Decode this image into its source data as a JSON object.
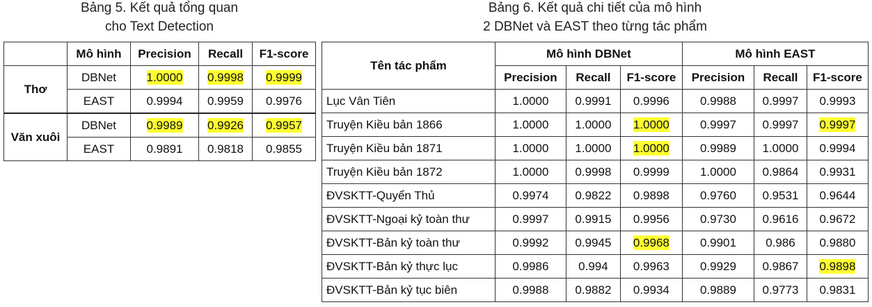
{
  "table5": {
    "caption_line1": "Bảng 5. Kết quả tổng quan",
    "caption_line2": "cho Text Detection",
    "headers": [
      "",
      "Mô hình",
      "Precision",
      "Recall",
      "F1-score"
    ],
    "groups": [
      {
        "label": "Thơ",
        "rows": [
          {
            "model": "DBNet",
            "precision": "1.0000",
            "recall": "0.9998",
            "f1": "0.9999",
            "highlight": [
              "precision",
              "recall",
              "f1"
            ]
          },
          {
            "model": "EAST",
            "precision": "0.9994",
            "recall": "0.9959",
            "f1": "0.9976",
            "highlight": []
          }
        ]
      },
      {
        "label": "Văn xuôi",
        "rows": [
          {
            "model": "DBNet",
            "precision": "0.9989",
            "recall": "0.9926",
            "f1": "0.9957",
            "highlight": [
              "precision",
              "recall",
              "f1"
            ]
          },
          {
            "model": "EAST",
            "precision": "0.9891",
            "recall": "0.9818",
            "f1": "0.9855",
            "highlight": []
          }
        ]
      }
    ]
  },
  "table6": {
    "caption_line1": "Bảng 6. Kết quả chi tiết của mô hình",
    "caption_line2": "2 DBNet và EAST theo từng tác phẩm",
    "header_work": "Tên tác phẩm",
    "header_group_dbnet": "Mô hình DBNet",
    "header_group_east": "Mô hình EAST",
    "sub_headers": [
      "Precision",
      "Recall",
      "F1-score",
      "Precision",
      "Recall",
      "F1-score"
    ],
    "rows": [
      {
        "work": "Lục Vân Tiên",
        "values": [
          "1.0000",
          "0.9991",
          "0.9996",
          "0.9988",
          "0.9997",
          "0.9993"
        ],
        "highlight": []
      },
      {
        "work": "Truyện Kiều bản 1866",
        "values": [
          "1.0000",
          "1.0000",
          "1.0000",
          "0.9997",
          "0.9997",
          "0.9997"
        ],
        "highlight": [
          2,
          5
        ]
      },
      {
        "work": "Truyện Kiều bản 1871",
        "values": [
          "1.0000",
          "1.0000",
          "1.0000",
          "0.9989",
          "1.0000",
          "0.9994"
        ],
        "highlight": [
          2
        ]
      },
      {
        "work": "Truyện Kiều bản 1872",
        "values": [
          "1.0000",
          "0.9998",
          "0.9999",
          "1.0000",
          "0.9864",
          "0.9931"
        ],
        "highlight": []
      },
      {
        "work": "ĐVSKTT-Quyển Thủ",
        "values": [
          "0.9974",
          "0.9822",
          "0.9898",
          "0.9760",
          "0.9531",
          "0.9644"
        ],
        "highlight": []
      },
      {
        "work": "ĐVSKTT-Ngoại kỷ toàn thư",
        "values": [
          "0.9997",
          "0.9915",
          "0.9956",
          "0.9730",
          "0.9616",
          "0.9672"
        ],
        "highlight": []
      },
      {
        "work": "ĐVSKTT-Bản kỷ toàn thư",
        "values": [
          "0.9992",
          "0.9945",
          "0.9968",
          "0.9901",
          "0.986",
          "0.9880"
        ],
        "highlight": [
          2
        ]
      },
      {
        "work": "ĐVSKTT-Bản kỷ thực lục",
        "values": [
          "0.9986",
          "0.994",
          "0.9963",
          "0.9929",
          "0.9867",
          "0.9898"
        ],
        "highlight": [
          5
        ]
      },
      {
        "work": "ĐVSKTT-Bản kỷ tục biên",
        "values": [
          "0.9988",
          "0.9882",
          "0.9934",
          "0.9889",
          "0.9773",
          "0.9831"
        ],
        "highlight": []
      }
    ],
    "highlight_color": "#ffff33"
  }
}
